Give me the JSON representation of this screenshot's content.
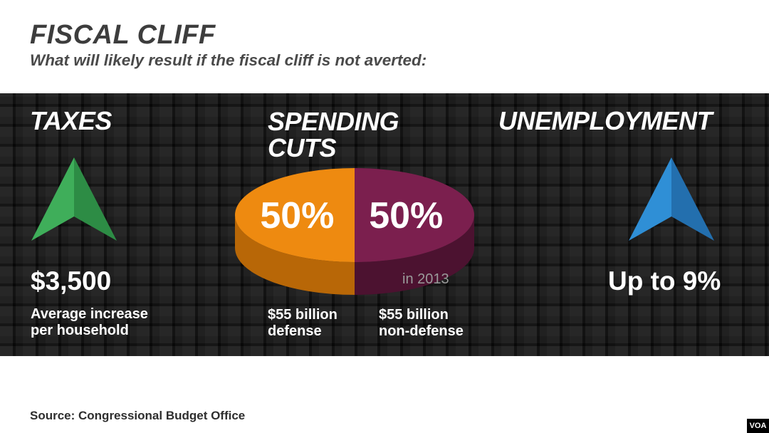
{
  "header": {
    "title": "FISCAL CLIFF",
    "subtitle": "What will likely result if the fiscal cliff is not averted:"
  },
  "taxes": {
    "heading": "TAXES",
    "value": "$3,500",
    "caption_line1": "Average increase",
    "caption_line2": "per household",
    "icon": "up-arrow-icon",
    "color": "#3fae5a"
  },
  "spending": {
    "heading_line1": "SPENDING",
    "heading_line2": "CUTS",
    "year_note": "in 2013",
    "defense_line1": "$55 billion",
    "defense_line2": "defense",
    "nondefense_line1": "$55 billion",
    "nondefense_line2": "non-defense"
  },
  "unemployment": {
    "heading": "UNEMPLOYMENT",
    "value": "Up to 9%",
    "icon": "up-arrow-icon",
    "color": "#2f8fd6"
  },
  "chart_data": {
    "type": "pie",
    "slices": [
      {
        "label": "50%",
        "value": 50,
        "color": "#ee8a10"
      },
      {
        "label": "50%",
        "value": 50,
        "color": "#7b1f4e"
      }
    ]
  },
  "footer": {
    "source": "Source: Congressional Budget Office",
    "badge": "VOA"
  }
}
